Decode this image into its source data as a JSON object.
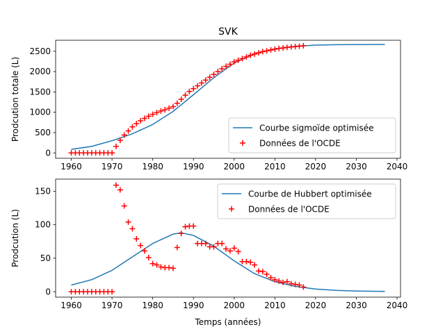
{
  "title": "SVK",
  "colors": {
    "curve": "#1f77b4",
    "data": "#ff0000",
    "axis": "#000000"
  },
  "chart_data": [
    {
      "type": "line",
      "title": "SVK",
      "xlabel": "",
      "ylabel": "Prodcution totale (L)",
      "xlim": [
        1956.15,
        2040.85
      ],
      "ylim": [
        -132,
        2770
      ],
      "xticks": [
        1960,
        1970,
        1980,
        1990,
        2000,
        2010,
        2020,
        2030,
        2040
      ],
      "yticks": [
        0,
        500,
        1000,
        1500,
        2000,
        2500
      ],
      "grid": false,
      "legend_position": "lower-right",
      "series": [
        {
          "name": "Courbe sigmoïde optimisée",
          "style": "line",
          "x": [
            1960,
            1965,
            1970,
            1975,
            1980,
            1985,
            1990,
            1995,
            2000,
            2005,
            2010,
            2015,
            2020,
            2025,
            2030,
            2037
          ],
          "y": [
            88,
            160,
            300,
            470,
            700,
            1020,
            1430,
            1850,
            2210,
            2440,
            2560,
            2620,
            2650,
            2660,
            2665,
            2668
          ]
        },
        {
          "name": "Données de l'OCDE",
          "style": "marker-plus",
          "x": [
            1960,
            1961,
            1962,
            1963,
            1964,
            1965,
            1966,
            1967,
            1968,
            1969,
            1970,
            1971,
            1972,
            1973,
            1974,
            1975,
            1976,
            1977,
            1978,
            1979,
            1980,
            1981,
            1982,
            1983,
            1984,
            1985,
            1986,
            1987,
            1988,
            1989,
            1990,
            1991,
            1992,
            1993,
            1994,
            1995,
            1996,
            1997,
            1998,
            1999,
            2000,
            2001,
            2002,
            2003,
            2004,
            2005,
            2006,
            2007,
            2008,
            2009,
            2010,
            2011,
            2012,
            2013,
            2014,
            2015,
            2016,
            2017
          ],
          "y": [
            0,
            0,
            0,
            0,
            0,
            0,
            0,
            0,
            0,
            0,
            0,
            160,
            310,
            440,
            540,
            640,
            720,
            790,
            850,
            900,
            950,
            990,
            1030,
            1060,
            1100,
            1140,
            1220,
            1320,
            1420,
            1510,
            1580,
            1650,
            1720,
            1790,
            1860,
            1930,
            2000,
            2070,
            2130,
            2180,
            2240,
            2280,
            2320,
            2360,
            2400,
            2430,
            2460,
            2490,
            2510,
            2530,
            2550,
            2570,
            2580,
            2595,
            2605,
            2615,
            2625,
            2635
          ]
        }
      ]
    },
    {
      "type": "line",
      "title": "",
      "xlabel": "Temps (années)",
      "ylabel": "Prodcution (L)",
      "xlim": [
        1956.15,
        2040.85
      ],
      "ylim": [
        -8,
        168
      ],
      "xticks": [
        1960,
        1970,
        1980,
        1990,
        2000,
        2010,
        2020,
        2030,
        2040
      ],
      "yticks": [
        0,
        50,
        100,
        150
      ],
      "grid": false,
      "legend_position": "upper-right",
      "series": [
        {
          "name": "Courbe de Hubbert optimisée",
          "style": "line",
          "x": [
            1960,
            1965,
            1970,
            1975,
            1980,
            1985,
            1987,
            1990,
            1995,
            2000,
            2005,
            2010,
            2015,
            2020,
            2025,
            2030,
            2037
          ],
          "y": [
            10,
            18,
            32,
            52,
            72,
            86,
            88,
            84,
            68,
            46,
            27,
            15,
            8,
            4,
            2,
            1,
            0.5
          ]
        },
        {
          "name": "Données de l'OCDE",
          "style": "marker-plus",
          "x": [
            1960,
            1961,
            1962,
            1963,
            1964,
            1965,
            1966,
            1967,
            1968,
            1969,
            1970,
            1971,
            1972,
            1973,
            1974,
            1975,
            1976,
            1977,
            1978,
            1979,
            1980,
            1981,
            1982,
            1983,
            1984,
            1985,
            1986,
            1987,
            1988,
            1989,
            1990,
            1991,
            1992,
            1993,
            1994,
            1995,
            1996,
            1997,
            1998,
            1999,
            2000,
            2001,
            2002,
            2003,
            2004,
            2005,
            2006,
            2007,
            2008,
            2009,
            2010,
            2011,
            2012,
            2013,
            2014,
            2015,
            2016,
            2017
          ],
          "y": [
            0,
            0,
            0,
            0,
            0,
            0,
            0,
            0,
            0,
            0,
            0,
            159,
            152,
            128,
            104,
            94,
            79,
            69,
            61,
            51,
            42,
            40,
            37,
            36,
            36,
            35,
            66,
            87,
            97,
            98,
            98,
            72,
            72,
            72,
            67,
            67,
            72,
            72,
            64,
            61,
            65,
            60,
            45,
            45,
            44,
            40,
            31,
            30,
            26,
            21,
            18,
            16,
            14,
            15,
            12,
            11,
            10,
            7
          ]
        }
      ]
    }
  ]
}
